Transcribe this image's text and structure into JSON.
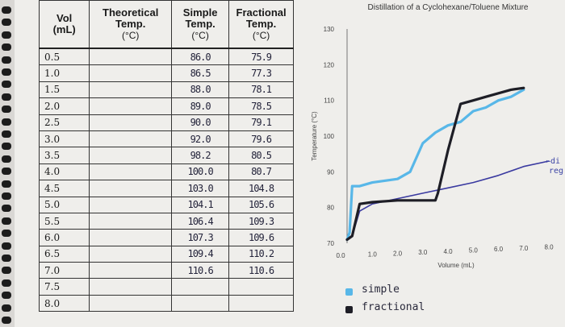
{
  "table": {
    "headers": {
      "vol": "Vol",
      "vol_unit": "(mL)",
      "theoretical": "Theoretical Temp.",
      "theoretical_unit": "(°C)",
      "simple": "Simple Temp.",
      "simple_unit": "(°C)",
      "fractional": "Fractional Temp.",
      "fractional_unit": "(°C)"
    },
    "rows": [
      {
        "vol": "0.5",
        "theoretical": "",
        "simple": "86.0",
        "fractional": "75.9"
      },
      {
        "vol": "1.0",
        "theoretical": "",
        "simple": "86.5",
        "fractional": "77.3"
      },
      {
        "vol": "1.5",
        "theoretical": "",
        "simple": "88.0",
        "fractional": "78.1"
      },
      {
        "vol": "2.0",
        "theoretical": "",
        "simple": "89.0",
        "fractional": "78.5"
      },
      {
        "vol": "2.5",
        "theoretical": "",
        "simple": "90.0",
        "fractional": "79.1"
      },
      {
        "vol": "3.0",
        "theoretical": "",
        "simple": "92.0",
        "fractional": "79.6"
      },
      {
        "vol": "3.5",
        "theoretical": "",
        "simple": "98.2",
        "fractional": "80.5"
      },
      {
        "vol": "4.0",
        "theoretical": "",
        "simple": "100.0",
        "fractional": "80.7"
      },
      {
        "vol": "4.5",
        "theoretical": "",
        "simple": "103.0",
        "fractional": "104.8"
      },
      {
        "vol": "5.0",
        "theoretical": "",
        "simple": "104.1",
        "fractional": "105.6"
      },
      {
        "vol": "5.5",
        "theoretical": "",
        "simple": "106.4",
        "fractional": "109.3"
      },
      {
        "vol": "6.0",
        "theoretical": "",
        "simple": "107.3",
        "fractional": "109.6"
      },
      {
        "vol": "6.5",
        "theoretical": "",
        "simple": "109.4",
        "fractional": "110.2"
      },
      {
        "vol": "7.0",
        "theoretical": "",
        "simple": "110.6",
        "fractional": "110.6"
      },
      {
        "vol": "7.5",
        "theoretical": "",
        "simple": "",
        "fractional": ""
      },
      {
        "vol": "8.0",
        "theoretical": "",
        "simple": "",
        "fractional": ""
      }
    ]
  },
  "chart_data": {
    "type": "line",
    "title": "Distillation of a Cyclohexane/Toluene Mixture",
    "xlabel": "Volume (mL)",
    "ylabel": "Temperature (°C)",
    "xlim": [
      0,
      8
    ],
    "ylim": [
      70,
      130
    ],
    "xticks": [
      "0.0",
      "1.0",
      "2.0",
      "3.0",
      "4.0",
      "5.0",
      "6.0",
      "7.0",
      "8.0"
    ],
    "yticks": [
      "70",
      "80",
      "90",
      "100",
      "110",
      "120",
      "130"
    ],
    "grid": false,
    "series": [
      {
        "name": "simple",
        "color": "#58b7e8",
        "x": [
          0.0,
          0.1,
          0.2,
          0.5,
          1.0,
          2.0,
          2.5,
          3.0,
          3.5,
          4.0,
          4.5,
          5.0,
          5.5,
          6.0,
          6.5,
          7.0
        ],
        "y": [
          71.0,
          73.0,
          86.0,
          86.0,
          87.0,
          88.0,
          90.0,
          98.0,
          101.0,
          103.0,
          104.0,
          107.0,
          108.0,
          110.0,
          111.0,
          113.0
        ]
      },
      {
        "name": "fractional",
        "color": "#1e1e26",
        "x": [
          0.0,
          0.2,
          0.5,
          1.0,
          2.0,
          3.5,
          3.6,
          4.0,
          4.5,
          5.0,
          5.5,
          6.0,
          6.5,
          7.0
        ],
        "y": [
          71.0,
          72.0,
          81.0,
          81.5,
          82.0,
          82.0,
          84.0,
          96.0,
          109.0,
          110.0,
          111.0,
          112.0,
          113.0,
          113.5
        ]
      },
      {
        "name": "",
        "color": "#3a3aa0",
        "x": [
          0.0,
          0.2,
          0.5,
          1.0,
          2.0,
          3.0,
          4.0,
          5.0,
          6.0,
          7.0,
          8.0
        ],
        "y": [
          71.0,
          72.0,
          79.0,
          81.0,
          82.5,
          84.0,
          85.5,
          87.0,
          89.0,
          91.5,
          93.0
        ]
      }
    ],
    "legend": [
      {
        "label": "simple",
        "color": "#58b7e8"
      },
      {
        "label": "fractional",
        "color": "#1e1e26"
      }
    ],
    "side_note_lines": [
      "←di",
      "reg"
    ]
  }
}
